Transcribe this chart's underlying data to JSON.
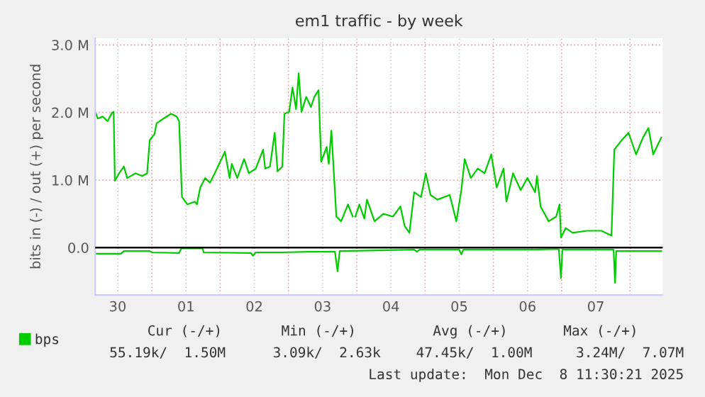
{
  "chart_data": {
    "type": "line",
    "title": "em1 traffic - by week",
    "ylabel": "bits in (-) / out (+) per second",
    "series": [
      {
        "name": "bps",
        "color": "#00cc00",
        "x": [
          "2025-11-30T04:05",
          "2025-11-30T05:00",
          "2025-11-30T06:45",
          "2025-11-30T08:25",
          "2025-11-30T10:05",
          "2025-11-30T10:35",
          "2025-11-30T11:00",
          "2025-11-30T12:30",
          "2025-11-30T14:10",
          "2025-11-30T15:20",
          "2025-11-30T18:15",
          "2025-11-30T20:40",
          "2025-11-30T22:20",
          "2025-11-30T23:15",
          "2025-12-01T00:55",
          "2025-12-01T01:40",
          "2025-12-01T04:05",
          "2025-12-01T06:45",
          "2025-12-01T08:40",
          "2025-12-01T09:35",
          "2025-12-01T10:35",
          "2025-12-01T12:30",
          "2025-12-01T15:05",
          "2025-12-01T15:50",
          "2025-12-01T17:00",
          "2025-12-01T18:45",
          "2025-12-01T20:25",
          "2025-12-01T22:05",
          "2025-12-02T01:40",
          "2025-12-02T03:20",
          "2025-12-02T04:05",
          "2025-12-02T06:00",
          "2025-12-02T08:25",
          "2025-12-02T10:05",
          "2025-12-02T12:30",
          "2025-12-02T15:05",
          "2025-12-02T15:50",
          "2025-12-02T17:30",
          "2025-12-02T19:10",
          "2025-12-02T20:10",
          "2025-12-02T21:50",
          "2025-12-02T22:35",
          "2025-12-03T00:15",
          "2025-12-03T01:25",
          "2025-12-03T02:40",
          "2025-12-03T03:35",
          "2025-12-03T04:35",
          "2025-12-03T06:15",
          "2025-12-03T07:55",
          "2025-12-03T09:05",
          "2025-12-03T10:35",
          "2025-12-03T11:30",
          "2025-12-03T13:25",
          "2025-12-03T14:10",
          "2025-12-03T15:05",
          "2025-12-03T16:50",
          "2025-12-03T18:30",
          "2025-12-03T20:55",
          "2025-12-03T22:35"
        ],
        "values": [
          2.01,
          1.91,
          1.94,
          1.87,
          2.0,
          2.01,
          0.99,
          1.1,
          1.2,
          1.03,
          1.1,
          1.06,
          1.1,
          1.59,
          1.68,
          1.84,
          1.91,
          1.98,
          1.94,
          1.87,
          0.75,
          0.64,
          0.68,
          0.64,
          0.89,
          1.03,
          0.96,
          1.1,
          1.42,
          1.03,
          1.24,
          1.03,
          1.31,
          1.1,
          1.17,
          1.45,
          1.17,
          1.2,
          1.7,
          1.13,
          1.2,
          1.98,
          2.01,
          2.37,
          2.05,
          2.58,
          2.01,
          2.23,
          2.08,
          2.23,
          2.33,
          1.27,
          1.49,
          1.24,
          1.73,
          0.46,
          0.39,
          0.64,
          0.46
        ]
      },
      {
        "color": "#00cc00",
        "x": [
          "2025-12-03T23:30",
          "2025-12-04T00:55",
          "2025-12-04T02:40",
          "2025-12-04T03:35",
          "2025-12-04T06:15",
          "2025-12-04T09:20",
          "2025-12-04T12:45",
          "2025-12-04T15:20",
          "2025-12-04T16:50",
          "2025-12-04T18:30",
          "2025-12-04T20:10",
          "2025-12-04T22:35",
          "2025-12-05T00:15",
          "2025-12-05T01:55",
          "2025-12-05T04:20",
          "2025-12-05T08:40",
          "2025-12-05T11:00",
          "2025-12-05T12:45",
          "2025-12-05T13:55",
          "2025-12-05T16:05",
          "2025-12-05T18:30",
          "2025-12-05T20:55",
          "2025-12-05T23:15",
          "2025-12-06T01:10",
          "2025-12-06T03:35",
          "2025-12-06T04:35",
          "2025-12-06T06:55",
          "2025-12-06T09:35",
          "2025-12-06T12:00",
          "2025-12-06T14:40",
          "2025-12-06T15:20",
          "2025-12-06T16:35",
          "2025-12-06T19:25",
          "2025-12-06T22:05",
          "2025-12-06T23:15",
          "2025-12-06T23:45",
          "2025-12-07T01:25",
          "2025-12-07T03:50",
          "2025-12-07T08:55",
          "2025-12-07T13:55",
          "2025-12-07T17:30",
          "2025-12-07T18:30",
          "2025-12-07T21:05",
          "2025-12-07T23:30",
          "2025-12-08T02:10",
          "2025-12-08T04:35",
          "2025-12-08T06:30",
          "2025-12-08T08:10",
          "2025-12-08T11:00"
        ],
        "values": [
          0.46,
          0.64,
          0.43,
          0.71,
          0.39,
          0.5,
          0.46,
          0.61,
          0.32,
          0.22,
          0.82,
          0.75,
          1.1,
          0.78,
          0.71,
          0.78,
          0.39,
          0.85,
          1.31,
          1.03,
          1.17,
          1.1,
          1.38,
          0.89,
          1.17,
          0.68,
          1.1,
          0.85,
          1.03,
          0.82,
          1.06,
          0.61,
          0.39,
          0.46,
          0.64,
          0.15,
          0.29,
          0.22,
          0.25,
          0.25,
          0.18,
          1.45,
          1.59,
          1.7,
          1.38,
          1.63,
          1.77,
          1.38,
          1.63
        ]
      },
      {
        "color": "#00cc00",
        "x": [
          "2025-11-30T04:05",
          "2025-11-30T13:10",
          "2025-11-30T14:10",
          "2025-11-30T23:15",
          "2025-12-01T00:00",
          "2025-12-01T09:35",
          "2025-12-01T10:20",
          "2025-12-01T17:45",
          "2025-12-01T18:15",
          "2025-12-02T10:50",
          "2025-12-02T11:30",
          "2025-12-02T12:30",
          "2025-12-02T21:35",
          "2025-12-03T07:10",
          "2025-12-03T16:20",
          "2025-12-03T17:15",
          "2025-12-03T18:00",
          "2025-12-04T20:10",
          "2025-12-04T21:10",
          "2025-12-04T22:05",
          "2025-12-05T12:00",
          "2025-12-05T12:45",
          "2025-12-05T13:25",
          "2025-12-06T14:25",
          "2025-12-06T23:00",
          "2025-12-06T23:45",
          "2025-12-07T00:15",
          "2025-12-07T18:15",
          "2025-12-07T18:45",
          "2025-12-07T19:10",
          "2025-12-08T11:00"
        ],
        "values": [
          -0.09,
          -0.09,
          -0.05,
          -0.05,
          -0.07,
          -0.08,
          -0.01,
          -0.01,
          -0.07,
          -0.08,
          -0.12,
          -0.07,
          -0.07,
          -0.06,
          -0.06,
          -0.35,
          -0.05,
          -0.03,
          -0.06,
          -0.03,
          -0.03,
          -0.1,
          -0.03,
          -0.03,
          -0.02,
          -0.45,
          -0.03,
          -0.03,
          -0.52,
          -0.05,
          -0.05
        ]
      }
    ],
    "xlim": [
      "2025-11-30T04:05",
      "2025-12-08T11:30"
    ],
    "xticks": [
      {
        "value": "2025-11-30T12:00",
        "label": "30"
      },
      {
        "value": "2025-12-01",
        "label": null
      },
      {
        "value": "2025-12-01T12:00",
        "label": "01"
      },
      {
        "value": "2025-12-02",
        "label": null
      },
      {
        "value": "2025-12-02T12:00",
        "label": "02"
      },
      {
        "value": "2025-12-03",
        "label": null
      },
      {
        "value": "2025-12-03T12:00",
        "label": "03"
      },
      {
        "value": "2025-12-04",
        "label": null
      },
      {
        "value": "2025-12-04T12:00",
        "label": "04"
      },
      {
        "value": "2025-12-05",
        "label": null
      },
      {
        "value": "2025-12-05T12:00",
        "label": "05"
      },
      {
        "value": "2025-12-06",
        "label": null
      },
      {
        "value": "2025-12-06T12:00",
        "label": "06"
      },
      {
        "value": "2025-12-07",
        "label": null
      },
      {
        "value": "2025-12-07T12:00",
        "label": "07"
      },
      {
        "value": "2025-12-08",
        "label": null
      }
    ],
    "ylim": [
      -0.7,
      3.1
    ],
    "yticks": [
      {
        "value": 0,
        "label": "0.0"
      },
      {
        "value": 1,
        "label": "1.0 M"
      },
      {
        "value": 2,
        "label": "2.0 M"
      },
      {
        "value": 3,
        "label": "3.0 M"
      }
    ],
    "ref_lines": [
      {
        "axis": "y",
        "value": 0,
        "color": "#000000"
      }
    ],
    "grid": true,
    "legend": "bottom left",
    "annotations": [
      "Cur (-/+)",
      "Min (-/+)",
      "Avg (-/+)",
      "Max (-/+)",
      "55.19k/  1.50M",
      "3.09k/  2.63k",
      "47.45k/  1.00M",
      "3.24M/  7.07M",
      "Last update:  Mon Dec  8 11:30:21 2025"
    ]
  }
}
